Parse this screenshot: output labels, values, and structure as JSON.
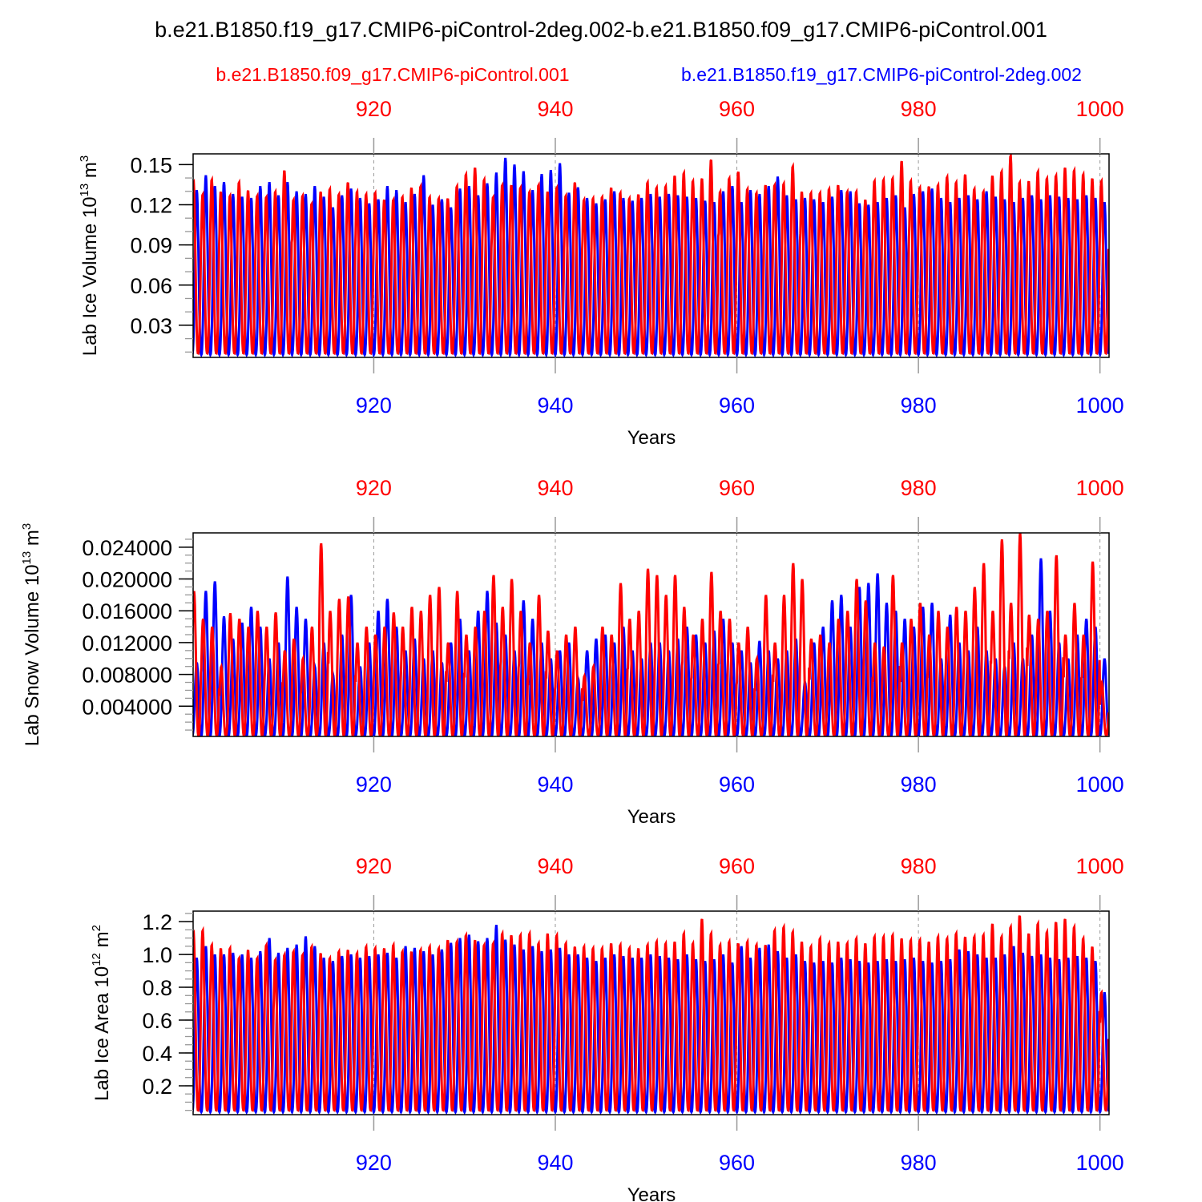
{
  "chart_data": [
    {
      "type": "line",
      "title": "b.e21.B1850.f19_g17.CMIP6-piControl-2deg.002-b.e21.B1850.f09_g17.CMIP6-piControl.001",
      "legend": {
        "left": "b.e21.B1850.f09_g17.CMIP6-piControl.001",
        "right": "b.e21.B1850.f19_g17.CMIP6-piControl-2deg.002",
        "placement": "top"
      },
      "xlabel": "Years",
      "ylabel": "Lab Ice Volume 10^13 m^3",
      "ylabel_main": "Lab Ice Volume 10",
      "ylabel_exp": "13",
      "ylabel_unit": " m",
      "ylabel_unit_exp": "3",
      "ylim": [
        0.006,
        0.158
      ],
      "yticks": [
        0.15,
        0.12,
        0.09,
        0.06,
        0.03
      ],
      "yticklabels": [
        "0.15",
        "0.12",
        "0.09",
        "0.06",
        "0.03"
      ],
      "yminor": 0.01,
      "xlim": [
        900.1,
        1001
      ],
      "xticks": [
        920,
        940,
        960,
        980,
        1000
      ],
      "xticklabels": [
        "920",
        "940",
        "960",
        "980",
        "1000"
      ],
      "series": [
        {
          "name": "b.e21.B1850.f19_g17.CMIP6-piControl-2deg.002",
          "color": "#0000ff",
          "phase": 0.0,
          "min": 0.008,
          "annual_max": [
            0.131,
            0.142,
            0.134,
            0.137,
            0.128,
            0.126,
            0.125,
            0.134,
            0.137,
            0.127,
            0.137,
            0.13,
            0.128,
            0.134,
            0.126,
            0.118,
            0.127,
            0.132,
            0.125,
            0.121,
            0.124,
            0.134,
            0.131,
            0.122,
            0.128,
            0.142,
            0.12,
            0.124,
            0.118,
            0.132,
            0.134,
            0.127,
            0.136,
            0.144,
            0.155,
            0.15,
            0.145,
            0.131,
            0.143,
            0.146,
            0.151,
            0.129,
            0.133,
            0.125,
            0.121,
            0.124,
            0.13,
            0.125,
            0.123,
            0.125,
            0.128,
            0.126,
            0.128,
            0.127,
            0.126,
            0.125,
            0.123,
            0.122,
            0.13,
            0.134,
            0.122,
            0.131,
            0.128,
            0.134,
            0.141,
            0.127,
            0.124,
            0.125,
            0.124,
            0.122,
            0.126,
            0.131,
            0.13,
            0.121,
            0.12,
            0.122,
            0.125,
            0.127,
            0.118,
            0.128,
            0.13,
            0.132,
            0.125,
            0.122,
            0.125,
            0.127,
            0.124,
            0.13,
            0.126,
            0.124,
            0.122,
            0.125,
            0.127,
            0.124,
            0.127,
            0.126,
            0.125,
            0.124,
            0.127,
            0.125,
            0.122
          ]
        },
        {
          "name": "b.e21.B1850.f09_g17.CMIP6-piControl.001",
          "color": "#ff0000",
          "phase": 0.35,
          "min": 0.009,
          "annual_max": [
            0.137,
            0.128,
            0.139,
            0.13,
            0.127,
            0.137,
            0.131,
            0.127,
            0.126,
            0.13,
            0.146,
            0.124,
            0.127,
            0.121,
            0.13,
            0.132,
            0.128,
            0.137,
            0.13,
            0.128,
            0.129,
            0.124,
            0.124,
            0.126,
            0.133,
            0.134,
            0.126,
            0.125,
            0.125,
            0.134,
            0.143,
            0.148,
            0.139,
            0.126,
            0.135,
            0.135,
            0.133,
            0.13,
            0.135,
            0.13,
            0.133,
            0.127,
            0.137,
            0.124,
            0.125,
            0.126,
            0.133,
            0.129,
            0.125,
            0.128,
            0.137,
            0.133,
            0.134,
            0.142,
            0.144,
            0.138,
            0.14,
            0.154,
            0.13,
            0.14,
            0.145,
            0.132,
            0.129,
            0.135,
            0.135,
            0.136,
            0.149,
            0.13,
            0.129,
            0.129,
            0.132,
            0.135,
            0.13,
            0.13,
            0.124,
            0.138,
            0.139,
            0.14,
            0.153,
            0.138,
            0.133,
            0.134,
            0.135,
            0.141,
            0.137,
            0.143,
            0.132,
            0.13,
            0.142,
            0.145,
            0.157,
            0.137,
            0.138,
            0.145,
            0.14,
            0.142,
            0.148,
            0.146,
            0.143,
            0.14,
            0.138
          ]
        }
      ]
    },
    {
      "type": "line",
      "xlabel": "Years",
      "ylabel": "Lab Snow Volume 10^13 m^3",
      "ylabel_main": "Lab Snow Volume 10",
      "ylabel_exp": "13",
      "ylabel_unit": " m",
      "ylabel_unit_exp": "3",
      "ylim": [
        0.0002,
        0.0258
      ],
      "yticks": [
        0.024,
        0.02,
        0.016,
        0.012,
        0.008,
        0.004
      ],
      "yticklabels": [
        "0.024000",
        "0.020000",
        "0.016000",
        "0.012000",
        "0.008000",
        "0.004000"
      ],
      "yminor": 0.001,
      "xlim": [
        900.1,
        1001
      ],
      "xticks": [
        920,
        940,
        960,
        980,
        1000
      ],
      "xticklabels": [
        "920",
        "940",
        "960",
        "980",
        "1000"
      ],
      "series": [
        {
          "name": "b.e21.B1850.f19_g17.CMIP6-piControl-2deg.002",
          "color": "#0000ff",
          "phase": 0.0,
          "min": 0.0003,
          "annual_max": [
            0.0095,
            0.0185,
            0.0197,
            0.0153,
            0.0125,
            0.0145,
            0.0165,
            0.014,
            0.01,
            0.012,
            0.0203,
            0.0165,
            0.015,
            0.009,
            0.012,
            0.008,
            0.013,
            0.018,
            0.009,
            0.012,
            0.016,
            0.0175,
            0.014,
            0.011,
            0.0125,
            0.01,
            0.011,
            0.0095,
            0.012,
            0.015,
            0.011,
            0.016,
            0.0185,
            0.0145,
            0.013,
            0.011,
            0.0173,
            0.015,
            0.012,
            0.01,
            0.011,
            0.012,
            0.0075,
            0.011,
            0.0125,
            0.013,
            0.012,
            0.014,
            0.011,
            0.01,
            0.012,
            0.012,
            0.011,
            0.0125,
            0.014,
            0.013,
            0.012,
            0.0135,
            0.015,
            0.012,
            0.011,
            0.0095,
            0.0122,
            0.011,
            0.01,
            0.011,
            0.0125,
            0.007,
            0.012,
            0.014,
            0.0173,
            0.018,
            0.014,
            0.019,
            0.0195,
            0.0207,
            0.017,
            0.016,
            0.015,
            0.014,
            0.0165,
            0.017,
            0.01,
            0.0155,
            0.012,
            0.011,
            0.014,
            0.011,
            0.01,
            0.009,
            0.012,
            0.01,
            0.013,
            0.0226,
            0.016,
            0.012,
            0.01,
            0.013,
            0.015,
            0.014,
            0.01
          ]
        },
        {
          "name": "b.e21.B1850.f09_g17.CMIP6-piControl.001",
          "color": "#ff0000",
          "phase": 0.3,
          "min": 0.0003,
          "annual_max": [
            0.0185,
            0.015,
            0.014,
            0.009,
            0.0157,
            0.015,
            0.014,
            0.016,
            0.014,
            0.0158,
            0.011,
            0.0125,
            0.01,
            0.014,
            0.0245,
            0.016,
            0.0175,
            0.0178,
            0.012,
            0.014,
            0.013,
            0.014,
            0.0158,
            0.014,
            0.0165,
            0.016,
            0.018,
            0.019,
            0.012,
            0.0185,
            0.013,
            0.014,
            0.016,
            0.0205,
            0.0165,
            0.02,
            0.016,
            0.012,
            0.018,
            0.0135,
            0.011,
            0.013,
            0.014,
            0.0078,
            0.009,
            0.014,
            0.013,
            0.0195,
            0.015,
            0.016,
            0.0213,
            0.0205,
            0.018,
            0.0205,
            0.0165,
            0.013,
            0.015,
            0.0209,
            0.016,
            0.015,
            0.012,
            0.014,
            0.01,
            0.018,
            0.012,
            0.018,
            0.022,
            0.02,
            0.0125,
            0.013,
            0.012,
            0.015,
            0.016,
            0.02,
            0.0173,
            0.012,
            0.0115,
            0.0205,
            0.012,
            0.015,
            0.017,
            0.013,
            0.016,
            0.014,
            0.0165,
            0.016,
            0.019,
            0.022,
            0.016,
            0.025,
            0.017,
            0.0258,
            0.0155,
            0.015,
            0.016,
            0.023,
            0.013,
            0.017,
            0.013,
            0.0222,
            0.007
          ]
        }
      ]
    },
    {
      "type": "line",
      "xlabel": "Years",
      "ylabel": "Lab Ice Area 10^12 m^2",
      "ylabel_main": "Lab Ice Area 10",
      "ylabel_exp": "12",
      "ylabel_unit": " m",
      "ylabel_unit_exp": "2",
      "ylim": [
        0.024,
        1.264
      ],
      "yticks": [
        1.2,
        1.0,
        0.8,
        0.6,
        0.4,
        0.2
      ],
      "yticklabels": [
        "1.2",
        "1.0",
        "0.8",
        "0.6",
        "0.4",
        "0.2"
      ],
      "yminor": 0.05,
      "xlim": [
        900.1,
        1001
      ],
      "xticks": [
        920,
        940,
        960,
        980,
        1000
      ],
      "xticklabels": [
        "920",
        "940",
        "960",
        "980",
        "1000"
      ],
      "series": [
        {
          "name": "b.e21.B1850.f19_g17.CMIP6-piControl-2deg.002",
          "color": "#0000ff",
          "phase": 0.0,
          "min": 0.04,
          "annual_max": [
            0.98,
            1.05,
            1.0,
            1.0,
            1.01,
            1.0,
            0.98,
            1.02,
            1.1,
            1.01,
            1.04,
            1.06,
            1.11,
            1.05,
            0.98,
            0.96,
            0.99,
            1.0,
            0.98,
            0.99,
            1.0,
            1.01,
            0.98,
            1.05,
            1.04,
            1.02,
            1.0,
            1.03,
            1.07,
            1.1,
            1.12,
            1.08,
            1.1,
            1.18,
            1.09,
            1.06,
            1.03,
            1.05,
            1.02,
            1.03,
            1.04,
            1.0,
            1.0,
            0.98,
            0.96,
            0.98,
            1.0,
            0.99,
            0.98,
            0.98,
            1.0,
            0.99,
            0.98,
            0.97,
            1.0,
            0.97,
            0.96,
            0.97,
            1.0,
            0.95,
            1.05,
            0.98,
            1.04,
            1.06,
            1.02,
            0.98,
            1.0,
            0.96,
            0.95,
            0.96,
            0.95,
            0.98,
            0.97,
            0.96,
            0.95,
            0.96,
            0.97,
            0.96,
            0.97,
            0.98,
            0.96,
            0.95,
            0.96,
            0.97,
            1.03,
            1.02,
            1.0,
            0.98,
            0.98,
            1.0,
            1.05,
            1.01,
            0.99,
            1.0,
            0.98,
            0.97,
            0.98,
            0.99,
            0.98,
            0.96,
            0.77
          ]
        },
        {
          "name": "b.e21.B1850.f09_g17.CMIP6-piControl.001",
          "color": "#ff0000",
          "phase": 0.35,
          "min": 0.05,
          "annual_max": [
            1.13,
            1.15,
            1.06,
            1.04,
            1.04,
            0.98,
            1.03,
            0.98,
            1.06,
            0.97,
            1.0,
            1.02,
            1.0,
            1.05,
            1.01,
            0.98,
            1.02,
            1.03,
            1.01,
            1.05,
            1.04,
            1.04,
            1.06,
            1.02,
            1.02,
            1.03,
            1.05,
            1.04,
            1.09,
            1.08,
            1.12,
            1.09,
            1.06,
            1.07,
            1.13,
            1.12,
            1.12,
            1.13,
            1.07,
            1.13,
            1.12,
            1.07,
            1.05,
            1.05,
            1.04,
            1.04,
            1.07,
            1.06,
            1.04,
            1.04,
            1.06,
            1.08,
            1.07,
            1.08,
            1.13,
            1.07,
            1.22,
            1.13,
            1.06,
            1.08,
            1.07,
            1.08,
            1.06,
            1.06,
            1.15,
            1.17,
            1.14,
            1.08,
            1.05,
            1.1,
            1.07,
            1.08,
            1.07,
            1.1,
            1.07,
            1.11,
            1.11,
            1.12,
            1.1,
            1.09,
            1.09,
            1.08,
            1.11,
            1.1,
            1.13,
            1.11,
            1.11,
            1.12,
            1.19,
            1.11,
            1.17,
            1.24,
            1.13,
            1.19,
            1.14,
            1.2,
            1.22,
            1.17,
            1.1,
            1.05,
            0.77
          ]
        }
      ]
    }
  ]
}
